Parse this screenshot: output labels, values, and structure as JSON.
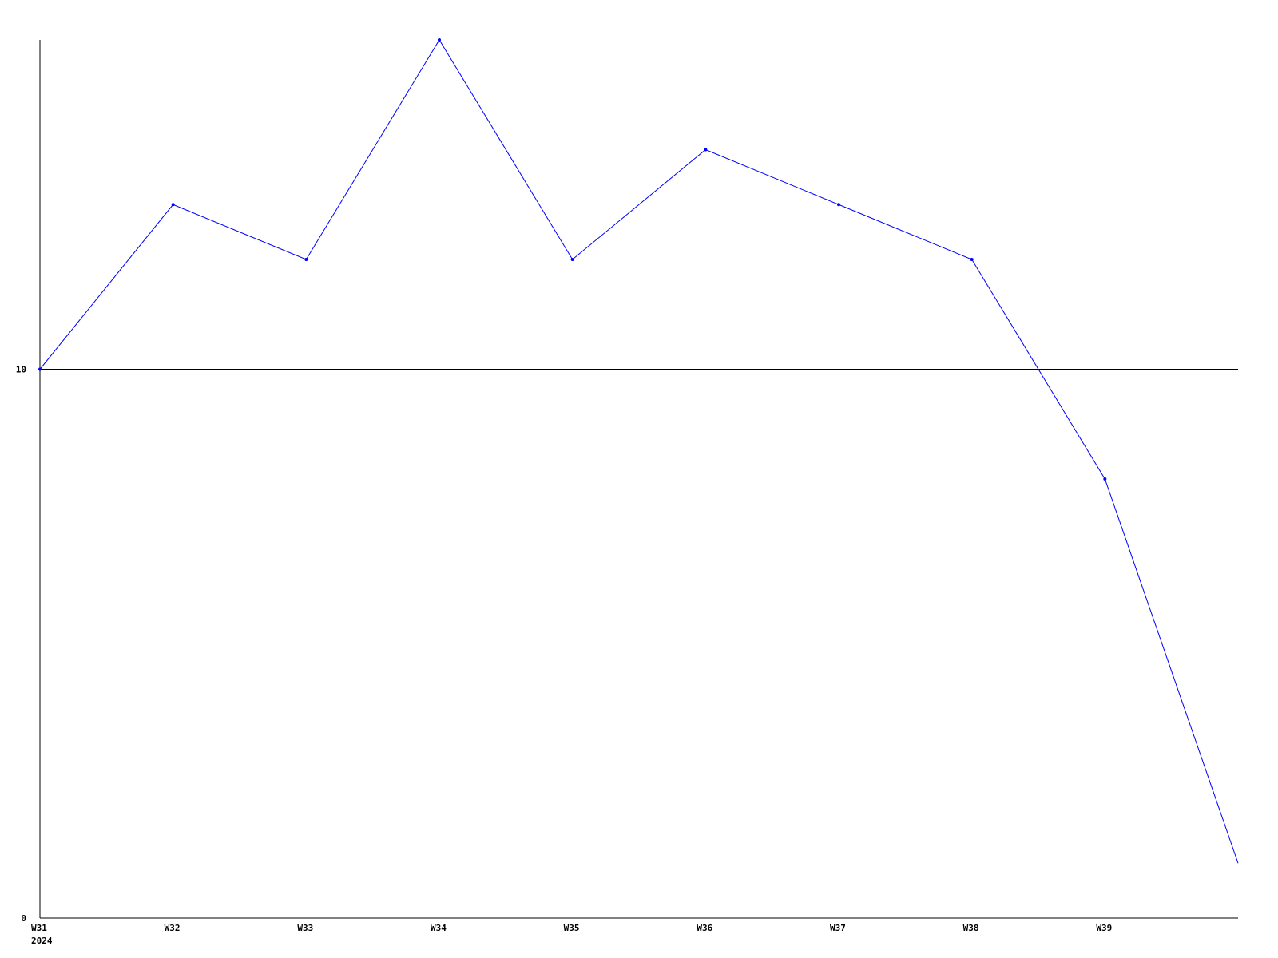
{
  "chart_data": {
    "type": "line",
    "title": "",
    "xlabel": "",
    "ylabel": "",
    "categories": [
      "W31",
      "W32",
      "W33",
      "W34",
      "W35",
      "W36",
      "W37",
      "W38",
      "W39",
      ""
    ],
    "x_sublabel": "2024",
    "ytick_labels": [
      "0",
      "10"
    ],
    "yticks": [
      0,
      10
    ],
    "ylim": [
      0,
      16
    ],
    "gridlines_y": [
      10
    ],
    "series": [
      {
        "values": [
          10,
          13,
          12,
          16,
          12,
          14,
          13,
          12,
          8,
          1
        ],
        "color": "#0000ff"
      }
    ],
    "axis_color": "#000000",
    "legend": "none"
  }
}
